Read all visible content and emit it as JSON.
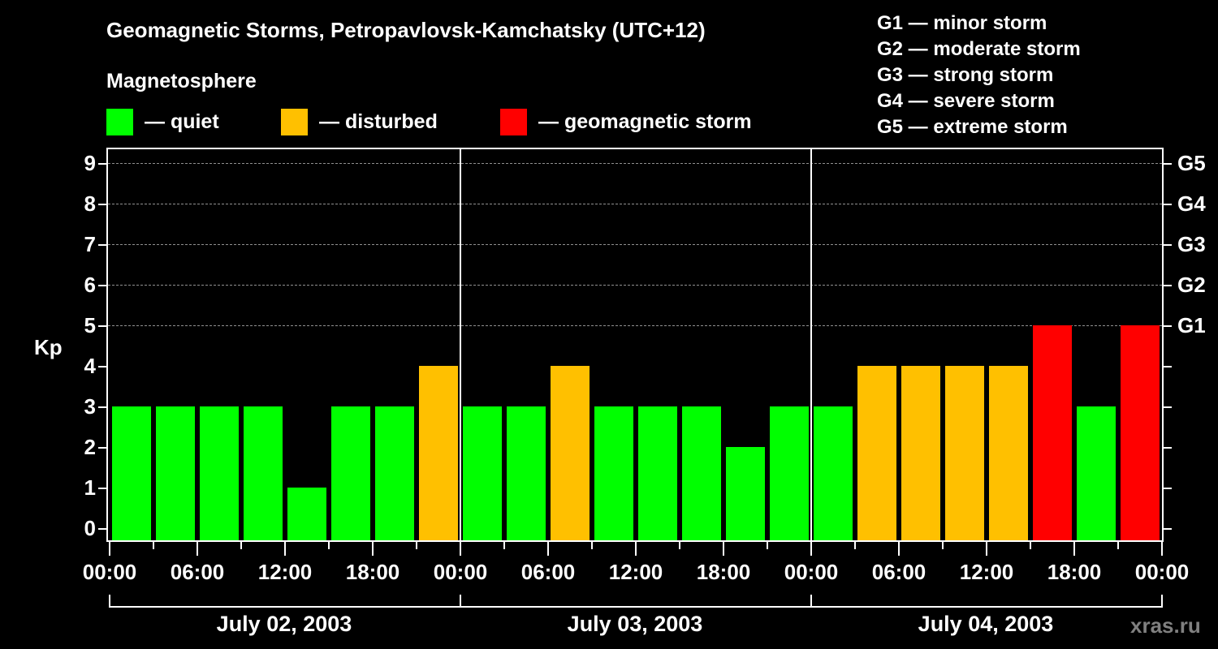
{
  "title": "Geomagnetic Storms, Petropavlovsk-Kamchatsky (UTC+12)",
  "subtitle": "Magnetosphere",
  "legend": [
    {
      "label": "— quiet",
      "color": "#00FF00"
    },
    {
      "label": "— disturbed",
      "color": "#FFC000"
    },
    {
      "label": "— geomagnetic storm",
      "color": "#FF0000"
    }
  ],
  "g_scale_legend": [
    "G1 — minor storm",
    "G2 — moderate storm",
    "G3 — strong storm",
    "G4 — severe storm",
    "G5 — extreme storm"
  ],
  "watermark": "xras.ru",
  "chart_data": {
    "type": "bar",
    "title": "Geomagnetic Storms, Petropavlovsk-Kamchatsky (UTC+12)",
    "subtitle": "Magnetosphere",
    "xlabel": "",
    "ylabel": "Kp",
    "ylim": [
      0,
      9
    ],
    "yticks": [
      0,
      1,
      2,
      3,
      4,
      5,
      6,
      7,
      8,
      9
    ],
    "right_axis_labels": [
      {
        "kp": 5,
        "label": "G1"
      },
      {
        "kp": 6,
        "label": "G2"
      },
      {
        "kp": 7,
        "label": "G3"
      },
      {
        "kp": 8,
        "label": "G4"
      },
      {
        "kp": 9,
        "label": "G5"
      }
    ],
    "grid": "horizontal dashed at Kp 5–9",
    "x_tick_labels": [
      "00:00",
      "06:00",
      "12:00",
      "18:00",
      "00:00",
      "06:00",
      "12:00",
      "18:00",
      "00:00",
      "06:00",
      "12:00",
      "18:00",
      "00:00"
    ],
    "days": [
      "July 02, 2003",
      "July 03, 2003",
      "July 04, 2003"
    ],
    "interval_hours": 3,
    "categories": [
      "07-02 00:00",
      "07-02 03:00",
      "07-02 06:00",
      "07-02 09:00",
      "07-02 12:00",
      "07-02 15:00",
      "07-02 18:00",
      "07-02 21:00",
      "07-03 00:00",
      "07-03 03:00",
      "07-03 06:00",
      "07-03 09:00",
      "07-03 12:00",
      "07-03 15:00",
      "07-03 18:00",
      "07-03 21:00",
      "07-04 00:00",
      "07-04 03:00",
      "07-04 06:00",
      "07-04 09:00",
      "07-04 12:00",
      "07-04 15:00",
      "07-04 18:00",
      "07-04 21:00"
    ],
    "values": [
      3,
      3,
      3,
      3,
      1,
      3,
      3,
      4,
      3,
      3,
      4,
      3,
      3,
      3,
      2,
      3,
      3,
      4,
      4,
      4,
      4,
      5,
      3,
      5
    ],
    "status": [
      "quiet",
      "quiet",
      "quiet",
      "quiet",
      "quiet",
      "quiet",
      "quiet",
      "disturbed",
      "quiet",
      "quiet",
      "disturbed",
      "quiet",
      "quiet",
      "quiet",
      "quiet",
      "quiet",
      "quiet",
      "disturbed",
      "disturbed",
      "disturbed",
      "disturbed",
      "storm",
      "quiet",
      "storm"
    ],
    "colors": {
      "quiet": "#00FF00",
      "disturbed": "#FFC000",
      "storm": "#FF0000"
    },
    "legend_position": "top"
  }
}
